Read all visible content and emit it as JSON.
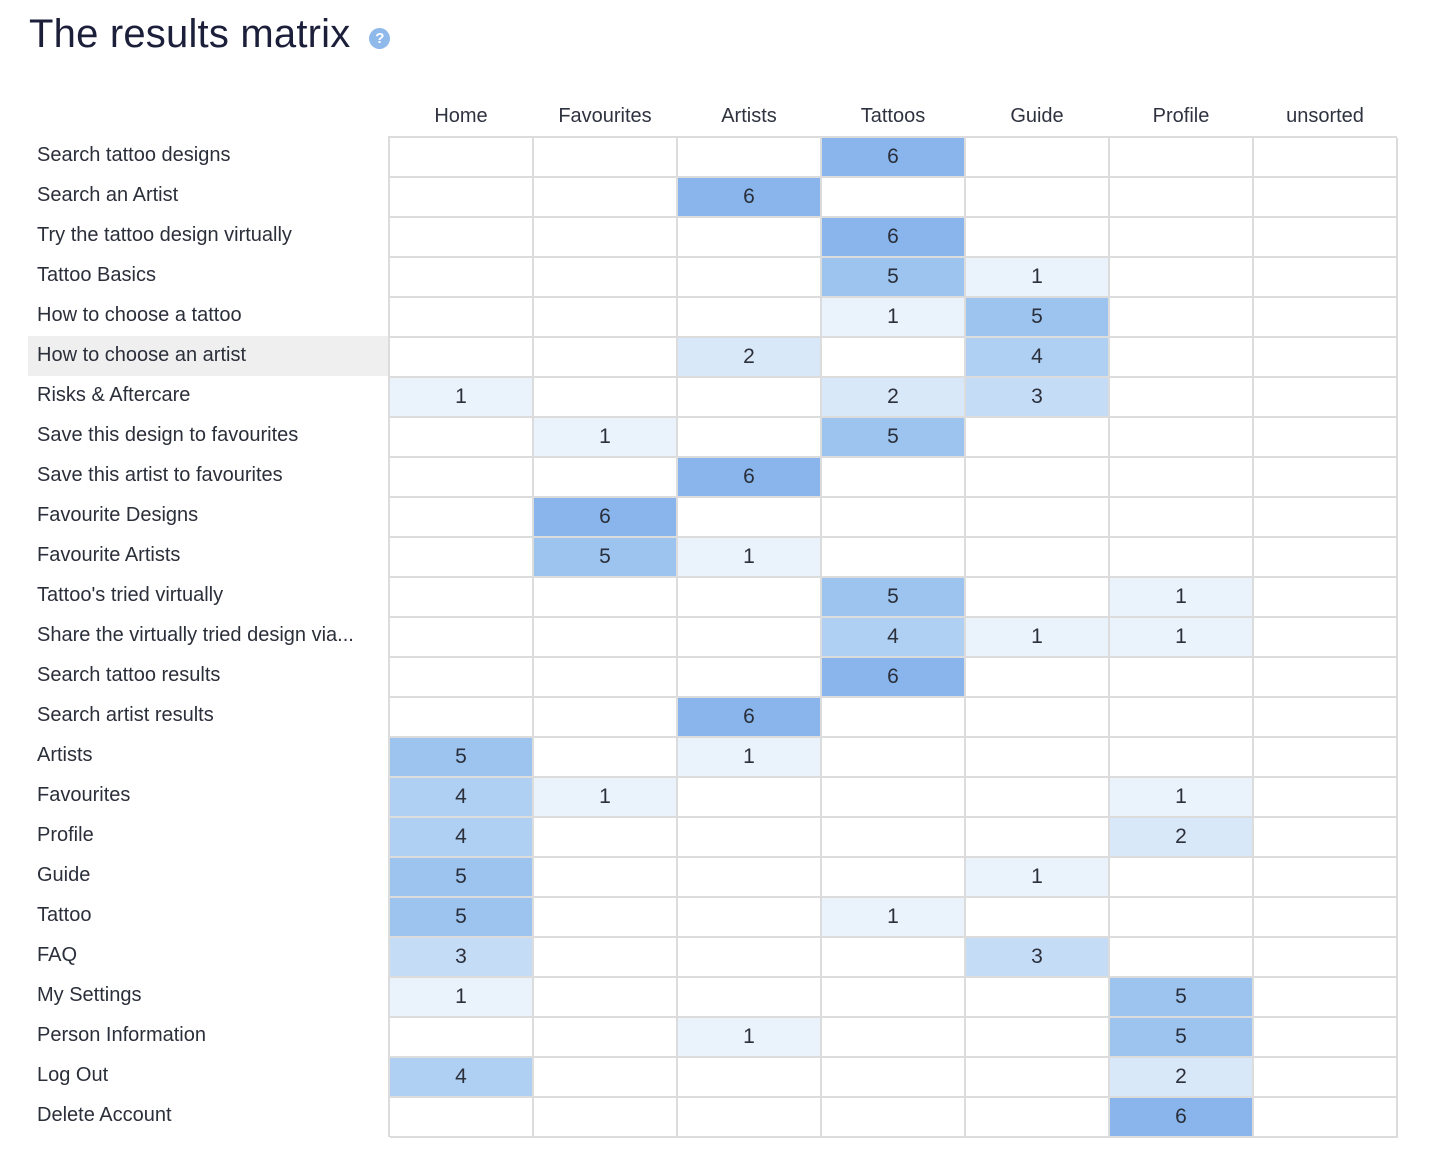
{
  "page": {
    "title": "The results matrix",
    "help_icon": "help-question-icon",
    "help_glyph": "?"
  },
  "colors": {
    "title": "#1c1f3a",
    "grid_line": "#dcdcdc",
    "row_highlight": "#efefef",
    "scale": {
      "1": "#eaf2fc",
      "2": "#d9e8f9",
      "3": "#c5dcf6",
      "4": "#afcff3",
      "5": "#9dc3ef",
      "6": "#89b5ec"
    }
  },
  "chart_data": {
    "type": "heatmap",
    "title": "The results matrix",
    "columns": [
      "Home",
      "Favourites",
      "Artists",
      "Tattoos",
      "Guide",
      "Profile",
      "unsorted"
    ],
    "rows": [
      "Search tattoo designs",
      "Search an Artist",
      "Try the tattoo design virtually",
      "Tattoo Basics",
      "How to choose a tattoo",
      "How to choose an artist",
      "Risks & Aftercare",
      "Save this design to favourites",
      "Save this artist to favourites",
      "Favourite Designs",
      "Favourite Artists",
      "Tattoo's tried virtually",
      "Share the virtually tried design via...",
      "Search tattoo results",
      "Search artist results",
      "Artists",
      "Favourites",
      "Profile",
      "Guide",
      "Tattoo",
      "FAQ",
      "My Settings",
      "Person Information",
      "Log Out",
      "Delete Account"
    ],
    "highlighted_row": "How to choose an artist",
    "values": [
      [
        null,
        null,
        null,
        6,
        null,
        null,
        null
      ],
      [
        null,
        null,
        6,
        null,
        null,
        null,
        null
      ],
      [
        null,
        null,
        null,
        6,
        null,
        null,
        null
      ],
      [
        null,
        null,
        null,
        5,
        1,
        null,
        null
      ],
      [
        null,
        null,
        null,
        1,
        5,
        null,
        null
      ],
      [
        null,
        null,
        2,
        null,
        4,
        null,
        null
      ],
      [
        1,
        null,
        null,
        2,
        3,
        null,
        null
      ],
      [
        null,
        1,
        null,
        5,
        null,
        null,
        null
      ],
      [
        null,
        null,
        6,
        null,
        null,
        null,
        null
      ],
      [
        null,
        6,
        null,
        null,
        null,
        null,
        null
      ],
      [
        null,
        5,
        1,
        null,
        null,
        null,
        null
      ],
      [
        null,
        null,
        null,
        5,
        null,
        1,
        null
      ],
      [
        null,
        null,
        null,
        4,
        1,
        1,
        null
      ],
      [
        null,
        null,
        null,
        6,
        null,
        null,
        null
      ],
      [
        null,
        null,
        6,
        null,
        null,
        null,
        null
      ],
      [
        5,
        null,
        1,
        null,
        null,
        null,
        null
      ],
      [
        4,
        1,
        null,
        null,
        null,
        1,
        null
      ],
      [
        4,
        null,
        null,
        null,
        null,
        2,
        null
      ],
      [
        5,
        null,
        null,
        null,
        1,
        null,
        null
      ],
      [
        5,
        null,
        null,
        1,
        null,
        null,
        null
      ],
      [
        3,
        null,
        null,
        null,
        3,
        null,
        null
      ],
      [
        1,
        null,
        null,
        null,
        null,
        5,
        null
      ],
      [
        null,
        null,
        1,
        null,
        null,
        5,
        null
      ],
      [
        4,
        null,
        null,
        null,
        null,
        2,
        null
      ],
      [
        null,
        null,
        null,
        null,
        null,
        6,
        null
      ]
    ]
  }
}
